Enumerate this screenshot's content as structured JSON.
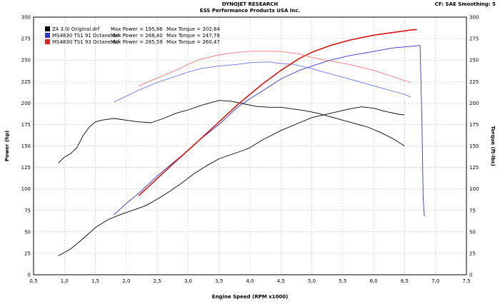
{
  "header": {
    "company": "DYNOJET RESEARCH",
    "dealer": "ESS Performance Products USA Inc.",
    "settings": "CF: SAE  Smoothing: 5"
  },
  "chart_data": {
    "type": "line",
    "xlabel": "Engine Speed (RPM x1000)",
    "ylabel": "Power (hp)",
    "y2label": "Torque (ft-lbs)",
    "xlim": [
      0.5,
      7.5
    ],
    "ylim": [
      0,
      300
    ],
    "x_ticks": [
      "0,5",
      "1,0",
      "1,5",
      "2,0",
      "2,5",
      "3,0",
      "3,5",
      "4,0",
      "4,5",
      "5,0",
      "5,5",
      "6,0",
      "6,5",
      "7,0",
      "7,5"
    ],
    "y_ticks": [
      "0",
      "25",
      "50",
      "75",
      "100",
      "125",
      "150",
      "175",
      "200",
      "225",
      "250",
      "275",
      "300"
    ],
    "grid": true,
    "legend_position": "top-left",
    "legend": [
      {
        "file": "Z4 3.0i Original.drf",
        "max_power_label": "Max Power = 195,86",
        "max_torque_label": "Max Torque = 202,84",
        "color": "#000000"
      },
      {
        "file": "MS4830 TS1 91 Octane.drf",
        "max_power_label": "Max Power = 268,40",
        "max_torque_label": "Max Torque = 247,78",
        "color": "#3333cc"
      },
      {
        "file": "MS4830 TS1 93 Octane.drf",
        "max_power_label": "Max Power = 285,59",
        "max_torque_label": "Max Torque = 260,47",
        "color": "#dd2222"
      }
    ],
    "series": [
      {
        "key": "z4_power",
        "kind": "power",
        "color": "#000000",
        "width": 0.9,
        "x": [
          0.9,
          1.1,
          1.3,
          1.5,
          1.7,
          1.9,
          2.1,
          2.3,
          2.5,
          2.7,
          2.9,
          3.1,
          3.3,
          3.5,
          3.7,
          3.9,
          4.0,
          4.2,
          4.5,
          4.8,
          5.0,
          5.3,
          5.6,
          5.8,
          6.0,
          6.2,
          6.4,
          6.5
        ],
        "y": [
          22,
          30,
          42,
          55,
          64,
          70,
          75,
          80,
          88,
          97,
          107,
          118,
          127,
          135,
          140,
          145,
          148,
          157,
          168,
          177,
          183,
          188,
          193,
          195.5,
          194,
          190,
          187,
          186
        ]
      },
      {
        "key": "z4_torque",
        "kind": "torque",
        "color": "#000000",
        "width": 0.9,
        "x": [
          0.9,
          1.0,
          1.1,
          1.2,
          1.3,
          1.4,
          1.5,
          1.6,
          1.7,
          1.8,
          2.0,
          2.2,
          2.4,
          2.6,
          2.8,
          3.0,
          3.2,
          3.4,
          3.5,
          3.7,
          3.9,
          4.1,
          4.3,
          4.5,
          4.7,
          4.9,
          5.1,
          5.3,
          5.5,
          5.7,
          5.9,
          6.1,
          6.3,
          6.5
        ],
        "y": [
          130,
          137,
          141,
          148,
          162,
          172,
          178,
          180,
          181,
          182,
          180,
          178,
          177,
          182,
          188,
          192,
          197,
          201,
          203,
          202,
          199,
          196,
          195,
          195,
          193,
          191,
          188,
          184,
          180,
          176,
          172,
          166,
          159,
          150
        ]
      },
      {
        "key": "ms91_power",
        "kind": "power",
        "color": "#3333cc",
        "width": 0.9,
        "x": [
          1.8,
          2.0,
          2.2,
          2.5,
          2.8,
          3.0,
          3.2,
          3.5,
          3.8,
          4.0,
          4.2,
          4.5,
          4.8,
          5.0,
          5.3,
          5.6,
          6.0,
          6.3,
          6.6,
          6.75,
          6.78,
          6.8,
          6.82
        ],
        "y": [
          70,
          83,
          95,
          115,
          133,
          145,
          158,
          175,
          195,
          205,
          214,
          228,
          238,
          243,
          250,
          255,
          260,
          264,
          266,
          267,
          180,
          90,
          68
        ]
      },
      {
        "key": "ms91_torque",
        "kind": "torque",
        "color": "#6677dd",
        "width": 0.9,
        "x": [
          1.8,
          2.0,
          2.2,
          2.5,
          2.8,
          3.0,
          3.2,
          3.5,
          3.8,
          4.0,
          4.3,
          4.5,
          4.7,
          5.0,
          5.3,
          5.6,
          6.0,
          6.3,
          6.5,
          6.6
        ],
        "y": [
          201,
          208,
          215,
          224,
          231,
          236,
          240,
          243,
          245,
          247,
          247.8,
          246,
          245,
          240,
          234,
          228,
          220,
          214,
          210,
          207
        ]
      },
      {
        "key": "ms93_power",
        "kind": "power",
        "color": "#dd1111",
        "width": 1.6,
        "x": [
          2.2,
          2.5,
          2.8,
          3.0,
          3.2,
          3.5,
          3.8,
          4.0,
          4.2,
          4.5,
          4.8,
          5.0,
          5.3,
          5.6,
          6.0,
          6.3,
          6.5,
          6.6,
          6.7
        ],
        "y": [
          92,
          112,
          132,
          145,
          158,
          178,
          198,
          210,
          222,
          238,
          252,
          259,
          267,
          273,
          279,
          282,
          284,
          285,
          285.6
        ]
      },
      {
        "key": "ms93_torque",
        "kind": "torque",
        "color": "#ee7777",
        "width": 0.9,
        "x": [
          2.2,
          2.5,
          2.8,
          3.0,
          3.2,
          3.5,
          3.8,
          4.0,
          4.2,
          4.5,
          4.8,
          5.0,
          5.3,
          5.6,
          6.0,
          6.3,
          6.5,
          6.6
        ],
        "y": [
          220,
          229,
          238,
          245,
          251,
          256,
          259,
          260,
          260.4,
          260,
          257,
          253,
          249,
          245,
          238,
          231,
          226,
          224
        ]
      }
    ]
  }
}
